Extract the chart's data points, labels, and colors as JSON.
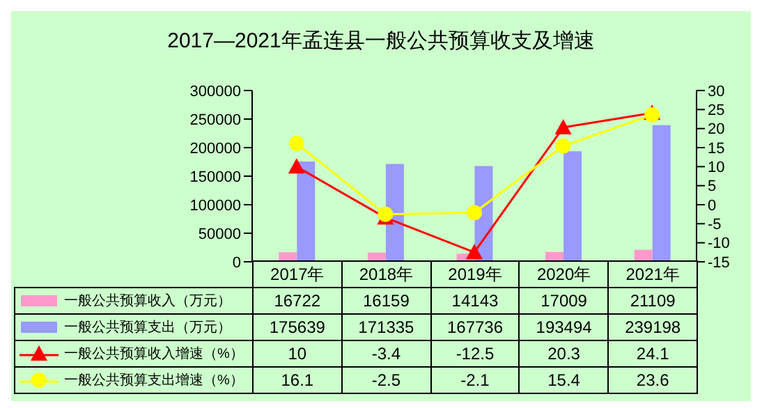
{
  "chart_data": {
    "type": "bar",
    "title": "2017—2021年孟连县一般公共预算收支及增速",
    "categories": [
      "2017年",
      "2018年",
      "2019年",
      "2020年",
      "2021年"
    ],
    "series": [
      {
        "name": "一般公共预算收入（万元）",
        "color": "#ff99cc",
        "values": [
          16722,
          16159,
          14143,
          17009,
          21109
        ]
      },
      {
        "name": "一般公共预算支出（万元）",
        "color": "#9999ff",
        "values": [
          175639,
          171335,
          167736,
          193494,
          239198
        ]
      },
      {
        "name": "一般公共预算收入增速（%）",
        "type": "line",
        "axis": "y2",
        "color": "#ff0000",
        "marker": "triangle",
        "values": [
          10,
          -3.4,
          -12.5,
          20.3,
          24.1
        ]
      },
      {
        "name": "一般公共预算支出增速（%）",
        "type": "line",
        "axis": "y2",
        "color": "#ffff00",
        "marker": "circle",
        "values": [
          16.1,
          -2.5,
          -2.1,
          15.4,
          23.6
        ]
      }
    ],
    "ylim": [
      0,
      300000
    ],
    "yticks": [
      0,
      50000,
      100000,
      150000,
      200000,
      250000,
      300000
    ],
    "y2lim": [
      -15,
      30
    ],
    "y2ticks": [
      -15,
      -10,
      -5,
      0,
      5,
      10,
      15,
      20,
      25,
      30
    ],
    "data_labels": true,
    "legend": "bottom",
    "line_style": "solid"
  }
}
